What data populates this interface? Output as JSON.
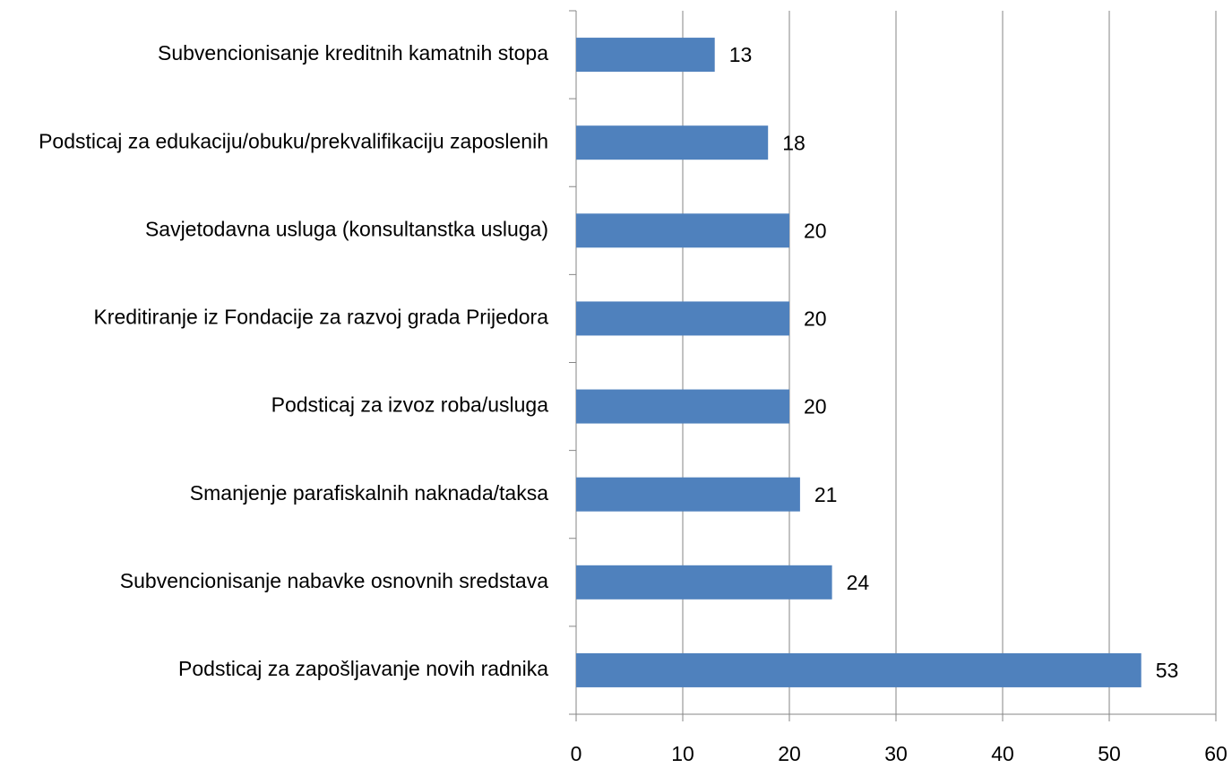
{
  "chart_data": {
    "type": "barh",
    "categories": [
      "Subvencionisanje kreditnih kamatnih stopa",
      "Podsticaj za edukaciju/obuku/prekvalifikaciju zaposlenih",
      "Savjetodavna usluga (konsultanstka usluga)",
      "Kreditiranje iz Fondacije za razvoj grada Prijedora",
      "Podsticaj za izvoz roba/usluga",
      "Smanjenje parafiskalnih naknada/taksa",
      "Subvencionisanje nabavke osnovnih sredstava",
      "Podsticaj za zapošljavanje novih radnika"
    ],
    "values": [
      13,
      18,
      20,
      20,
      20,
      21,
      24,
      53
    ],
    "color": "#4f81bd",
    "xlim": [
      0,
      60
    ],
    "xticks": [
      0,
      10,
      20,
      30,
      40,
      50,
      60
    ],
    "grid": true
  }
}
